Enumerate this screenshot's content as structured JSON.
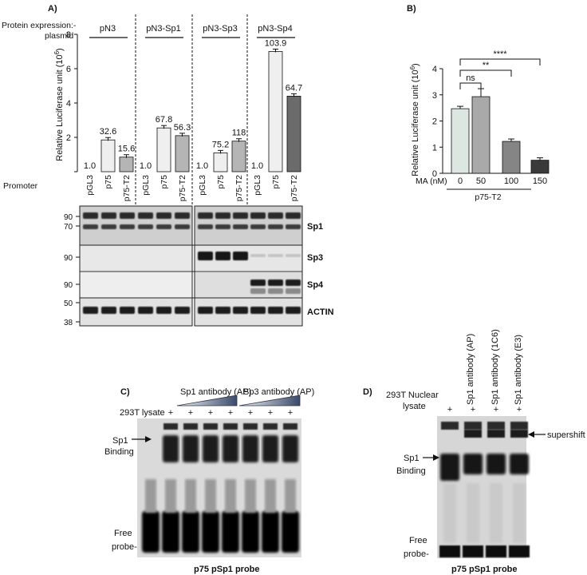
{
  "chart_data": [
    {
      "type": "bar",
      "panel_label": "A)",
      "ylabel": "Relative Luciferase unit (10",
      "ylabel_sup": "6",
      "ylabel_close": ")",
      "ylim": [
        0,
        8
      ],
      "yticks": [
        0,
        2,
        4,
        6,
        8
      ],
      "header_label": "Protein expression:-",
      "header_label2": "plasmid",
      "row_label": "Promoter",
      "groups": [
        {
          "name": "pN3",
          "categories": [
            "pGL3",
            "p75",
            "p75-T2"
          ],
          "values": [
            0.05,
            1.85,
            0.85
          ],
          "labels": [
            "1.0",
            "32.6",
            "15.6"
          ]
        },
        {
          "name": "pN3-Sp1",
          "categories": [
            "pGL3",
            "p75",
            "p75-T2"
          ],
          "values": [
            0.05,
            2.55,
            2.1
          ],
          "labels": [
            "1.0",
            "67.8",
            "56.3"
          ]
        },
        {
          "name": "pN3-Sp3",
          "categories": [
            "pGL3",
            "p75",
            "p75-T2"
          ],
          "values": [
            0.05,
            1.1,
            1.78
          ],
          "labels": [
            "1.0",
            "75.2",
            "118"
          ]
        },
        {
          "name": "pN3-Sp4",
          "categories": [
            "pGL3",
            "p75",
            "p75-T2"
          ],
          "values": [
            0.05,
            7.0,
            4.4
          ],
          "labels": [
            "1.0",
            "103.9",
            "64.7"
          ]
        }
      ]
    },
    {
      "type": "bar",
      "panel_label": "B)",
      "ylabel": "Relative Luciferase unit (10",
      "ylabel_sup": "6",
      "ylabel_close": ")",
      "ylim": [
        0,
        4
      ],
      "yticks": [
        0,
        1,
        2,
        3,
        4
      ],
      "xlabel_prefix": "MA (nM)",
      "categories": [
        "0",
        "50",
        "100",
        "150"
      ],
      "values": [
        2.47,
        2.93,
        1.22,
        0.5
      ],
      "group_label": "p75-T2",
      "significance": [
        "ns",
        "**",
        "****"
      ]
    }
  ],
  "blot": {
    "mw_markers": {
      "m90a": "90",
      "m70": "70",
      "m90b": "90",
      "m90c": "90",
      "m50": "50",
      "m38": "38"
    },
    "bands": [
      "Sp1",
      "Sp3",
      "Sp4",
      "ACTIN"
    ]
  },
  "panel_c": {
    "label": "C)",
    "lysate_label": "293T lysate",
    "lanes": [
      "-",
      "+",
      "+",
      "+",
      "+",
      "+",
      "+",
      "+"
    ],
    "antibody1": "Sp1 antibody (AP)",
    "antibody2": "Sp3 antibody (AP)",
    "binding_label1": "Sp1",
    "binding_label2": "Binding",
    "free_label1": "Free",
    "free_label2": "probe-",
    "caption": "p75 pSp1 probe"
  },
  "panel_d": {
    "label": "D)",
    "lysate_label1": "293T Nuclear",
    "lysate_label2": "lysate",
    "lanes": [
      "+",
      "+",
      "+",
      "+"
    ],
    "antibodies": [
      "Sp1 antibody (AP)",
      "Sp1 antibody (1C6)",
      "Sp1 antibody (E3)"
    ],
    "binding_label1": "Sp1",
    "binding_label2": "Binding",
    "supershift_label": "supershift",
    "free_label1": "Free",
    "free_label2": "probe-",
    "caption": "p75 pSp1 probe"
  },
  "colors": {
    "bar_light": "#efefef",
    "bar_mid": "#b5b5b5",
    "bar_dark": "#6b6b6b",
    "b_bar0": "#dde7e1",
    "b_bar1": "#a9a9a9",
    "b_bar2": "#858585",
    "b_bar3": "#3a3a3a"
  }
}
